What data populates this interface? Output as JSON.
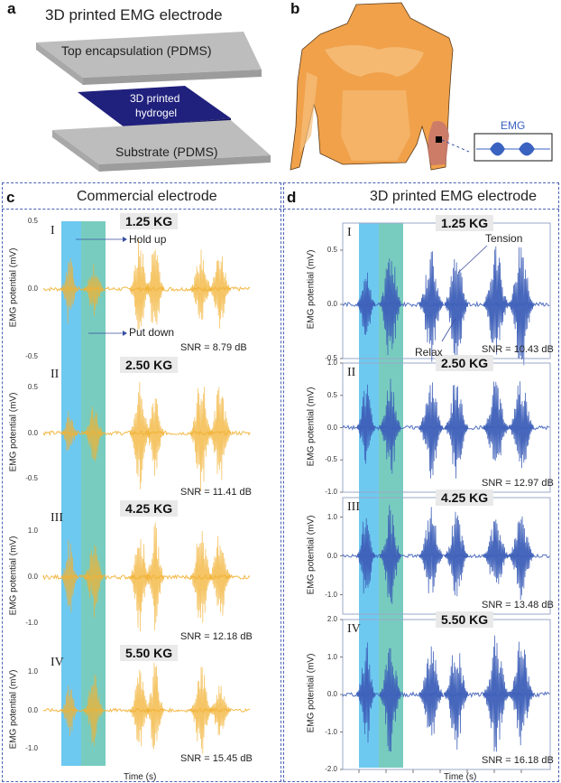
{
  "panel_a": {
    "letter": "a",
    "title": "3D printed EMG electrode",
    "layers": {
      "top": "Top encapsulation (PDMS)",
      "middle_line1": "3D printed",
      "middle_line2": "hydrogel",
      "bottom": "Substrate (PDMS)"
    },
    "colors": {
      "pdms": "#b8b8b8",
      "hydrogel": "#1f1f80"
    }
  },
  "panel_b": {
    "letter": "b",
    "inset_label": "EMG",
    "colors": {
      "skin": "#f0a14a",
      "muscle": "#c8786a",
      "signal": "#3a62c0"
    }
  },
  "chart_data": [
    {
      "type": "line",
      "panel": "c",
      "title": "Commercial electrode",
      "xlabel": "Time (s)",
      "ylabel": "EMG potential (mV)",
      "series_color": "#f2b133",
      "highlight_bands": [
        {
          "name": "Hold up",
          "color": "#5ec3ee"
        },
        {
          "name": "Put down",
          "color": "#69c7b8"
        }
      ],
      "annotations": [
        "Hold up",
        "Put down"
      ],
      "subplots": [
        {
          "index": "I",
          "load": "1.25 KG",
          "snr": "SNR = 8.79 dB",
          "ylim": [
            -0.5,
            0.5
          ],
          "yticks": [
            "0.5",
            "0.0",
            "-0.5"
          ],
          "bursts": [
            0.3,
            0.22,
            0.4,
            0.42,
            0.3,
            0.32
          ]
        },
        {
          "index": "II",
          "load": "2.50 KG",
          "snr": "SNR = 11.41 dB",
          "ylim": [
            -0.75,
            0.75
          ],
          "yticks": [
            "0.5",
            "0.0",
            "-0.5"
          ],
          "bursts": [
            0.3,
            0.35,
            0.65,
            0.55,
            0.7,
            0.6
          ]
        },
        {
          "index": "III",
          "load": "4.25 KG",
          "snr": "SNR = 12.18 dB",
          "ylim": [
            -1.5,
            1.5
          ],
          "yticks": [
            "1.0",
            "0.0",
            "-1.0"
          ],
          "bursts": [
            0.9,
            0.9,
            1.3,
            1.2,
            1.3,
            1.1
          ]
        },
        {
          "index": "IV",
          "load": "5.50 KG",
          "snr": "SNR = 15.45 dB",
          "ylim": [
            -1.5,
            1.5
          ],
          "yticks": [
            "1.0",
            "0.0",
            "-1.0"
          ],
          "bursts": [
            0.8,
            1.1,
            1.1,
            1.3,
            1.3,
            0.8
          ]
        }
      ]
    },
    {
      "type": "line",
      "panel": "d",
      "title": "3D printed EMG electrode",
      "xlabel": "Time (s)",
      "ylabel": "EMG potential (mV)",
      "series_color": "#3d5fb8",
      "highlight_bands": [
        {
          "name": "Hold up",
          "color": "#5ec3ee"
        },
        {
          "name": "Put down",
          "color": "#69c7b8"
        }
      ],
      "annotations": [
        "Tension",
        "Relax"
      ],
      "subplots": [
        {
          "index": "I",
          "load": "1.25 KG",
          "snr": "SNR = 10.43 dB",
          "ylim": [
            -0.5,
            0.75
          ],
          "yticks": [
            "0.5",
            "0.0",
            "-0.5"
          ],
          "bursts": [
            0.35,
            0.62,
            0.55,
            0.6,
            0.55,
            0.65
          ]
        },
        {
          "index": "II",
          "load": "2.50 KG",
          "snr": "SNR = 12.97 dB",
          "ylim": [
            -1.0,
            1.0
          ],
          "yticks": [
            "1.0",
            "0.5",
            "0.0",
            "-0.5",
            "-1.0"
          ],
          "bursts": [
            0.75,
            0.85,
            0.9,
            0.85,
            0.8,
            0.85
          ]
        },
        {
          "index": "III",
          "load": "4.25 KG",
          "snr": "SNR = 13.48 dB",
          "ylim": [
            -1.5,
            1.5
          ],
          "yticks": [
            "1.0",
            "0.0",
            "-1.0"
          ],
          "bursts": [
            1.3,
            1.4,
            1.3,
            1.2,
            1.1,
            1.2
          ]
        },
        {
          "index": "IV",
          "load": "5.50 KG",
          "snr": "SNR = 16.18 dB",
          "ylim": [
            -2.0,
            2.0
          ],
          "yticks": [
            "2.0",
            "1.0",
            "0.0",
            "-1.0",
            "-2.0"
          ],
          "bursts": [
            1.5,
            1.7,
            1.6,
            1.6,
            1.7,
            1.6
          ]
        }
      ]
    }
  ]
}
